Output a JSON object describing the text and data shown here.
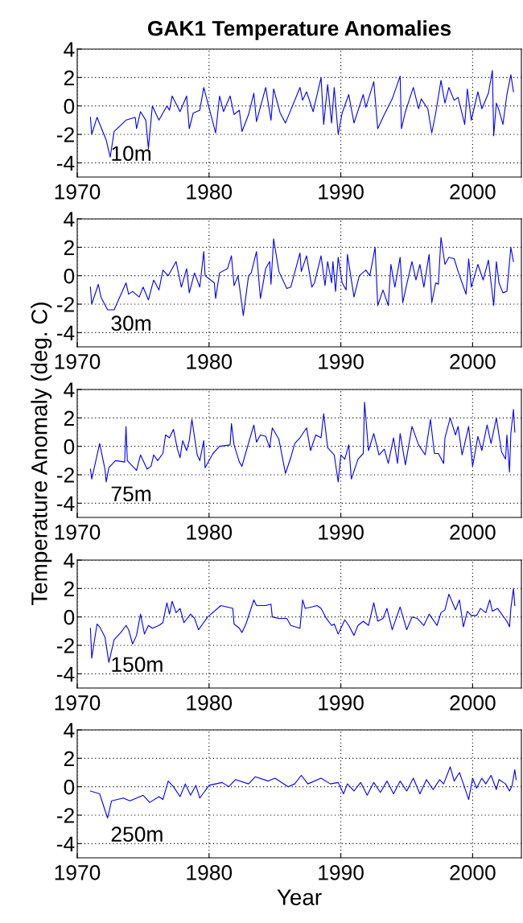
{
  "chart_data": [
    {
      "type": "line",
      "title": "GAK1 Temperature Anomalies",
      "xlim": [
        1970,
        2003.7
      ],
      "ylim": [
        -5,
        4
      ],
      "xticks": [
        1970,
        1980,
        1990,
        2000
      ],
      "yticks": [
        -4,
        -2,
        0,
        2,
        4
      ],
      "grid": true,
      "series": [
        {
          "name": "10m",
          "color": "#0000ff",
          "x": [
            1971.0,
            1971.1,
            1971.5,
            1972.2,
            1972.5,
            1972.8,
            1973.7,
            1974.4,
            1974.5,
            1974.8,
            1975.2,
            1975.4,
            1975.7,
            1976.2,
            1976.8,
            1977.0,
            1977.2,
            1977.8,
            1978.3,
            1978.5,
            1978.8,
            1979.3,
            1979.6,
            1980.5,
            1980.8,
            1981.1,
            1981.6,
            1981.9,
            1982.3,
            1982.5,
            1983.0,
            1983.4,
            1983.6,
            1984.3,
            1984.7,
            1984.9,
            1985.4,
            1985.8,
            1986.9,
            1987.1,
            1987.4,
            1987.9,
            1988.5,
            1988.7,
            1989.0,
            1989.3,
            1989.5,
            1989.8,
            1990.1,
            1990.6,
            1991.0,
            1991.7,
            1991.9,
            1992.5,
            1992.8,
            1993.3,
            1993.9,
            1994.5,
            1994.6,
            1994.9,
            1995.5,
            1995.9,
            1996.1,
            1996.6,
            1996.9,
            1997.2,
            1997.6,
            1997.9,
            1998.2,
            1998.6,
            1998.9,
            1999.4,
            1999.6,
            1999.9,
            2000.4,
            2000.7,
            2001.2,
            2001.5,
            2001.6,
            2001.8,
            2002.0,
            2002.3,
            2002.6,
            2002.9,
            2003.1
          ],
          "values": [
            -0.8,
            -2.0,
            -0.8,
            -2.4,
            -3.6,
            -1.8,
            -1.0,
            -0.8,
            -1.6,
            -0.4,
            -1.0,
            -3.0,
            0.0,
            -1.0,
            0.0,
            -0.3,
            0.7,
            -0.4,
            0.7,
            -1.6,
            -0.5,
            -0.3,
            1.3,
            -1.9,
            0.7,
            -0.4,
            0.7,
            -0.6,
            -0.3,
            -1.8,
            -0.6,
            0.9,
            -1.1,
            1.3,
            -1.0,
            1.2,
            -0.5,
            -1.2,
            1.3,
            0.4,
            1.0,
            -0.4,
            2.0,
            -1.3,
            1.5,
            -1.2,
            1.3,
            -2.0,
            -0.5,
            0.8,
            -1.2,
            0.8,
            -0.1,
            1.7,
            -1.6,
            -0.6,
            0.5,
            2.1,
            -1.6,
            -0.4,
            1.3,
            -0.2,
            0.5,
            -0.2,
            -1.9,
            -0.5,
            1.8,
            0.2,
            1.3,
            0.4,
            0.6,
            -1.3,
            1.2,
            -1.0,
            1.0,
            -0.2,
            0.9,
            2.5,
            -2.1,
            0.2,
            -0.3,
            -1.3,
            0.8,
            2.2,
            1.0
          ]
        }
      ]
    },
    {
      "type": "line",
      "xlim": [
        1970,
        2003.7
      ],
      "ylim": [
        -5,
        4
      ],
      "xticks": [
        1970,
        1980,
        1990,
        2000
      ],
      "yticks": [
        -4,
        -2,
        0,
        2,
        4
      ],
      "grid": true,
      "series": [
        {
          "name": "30m",
          "color": "#0000ff",
          "x": [
            1971.0,
            1971.1,
            1971.6,
            1971.8,
            1972.3,
            1972.8,
            1973.7,
            1973.9,
            1974.2,
            1974.7,
            1975.0,
            1975.4,
            1975.8,
            1976.2,
            1976.5,
            1976.9,
            1977.5,
            1977.9,
            1978.3,
            1978.5,
            1978.9,
            1979.3,
            1979.6,
            1979.7,
            1980.4,
            1980.5,
            1980.8,
            1981.4,
            1981.7,
            1981.9,
            1982.2,
            1982.6,
            1983.0,
            1983.2,
            1983.6,
            1983.9,
            1984.3,
            1984.6,
            1984.7,
            1984.9,
            1985.3,
            1985.9,
            1986.2,
            1986.9,
            1987.0,
            1987.4,
            1987.8,
            1988.0,
            1988.5,
            1988.8,
            1989.0,
            1989.3,
            1989.4,
            1989.6,
            1989.8,
            1990.1,
            1990.4,
            1990.5,
            1991.0,
            1991.4,
            1991.9,
            1992.2,
            1992.6,
            1992.8,
            1993.2,
            1993.6,
            1993.8,
            1994.1,
            1994.5,
            1994.7,
            1995.0,
            1995.4,
            1995.7,
            1996.0,
            1996.3,
            1996.7,
            1996.9,
            1997.2,
            1997.4,
            1997.6,
            1997.9,
            1998.2,
            1998.6,
            1998.9,
            1999.2,
            1999.5,
            1999.7,
            1999.9,
            2000.4,
            2000.8,
            2001.2,
            2001.4,
            2001.6,
            2001.8,
            2002.0,
            2002.3,
            2002.6,
            2002.9,
            2003.1
          ],
          "values": [
            -0.8,
            -2.0,
            -0.6,
            -1.5,
            -2.4,
            -2.4,
            -0.5,
            -1.3,
            -1.1,
            -1.5,
            -0.8,
            -1.7,
            -0.3,
            -1.0,
            0.4,
            0.0,
            1.0,
            -0.8,
            0.5,
            -1.2,
            0.2,
            -0.8,
            1.7,
            0.0,
            -0.5,
            -1.6,
            0.2,
            0.5,
            1.4,
            -0.7,
            0.0,
            -2.8,
            0.0,
            0.2,
            1.7,
            -1.6,
            0.5,
            1.0,
            -0.6,
            2.6,
            0.3,
            -0.9,
            -0.8,
            1.6,
            0.3,
            1.4,
            -0.8,
            -0.5,
            1.4,
            -0.7,
            1.0,
            -0.5,
            1.0,
            -1.1,
            1.3,
            -0.5,
            -1.0,
            1.5,
            -1.5,
            0.0,
            0.4,
            0.0,
            2.0,
            -2.1,
            -1.0,
            -2.1,
            0.8,
            -0.8,
            1.3,
            -1.9,
            -0.6,
            1.0,
            -0.3,
            0.8,
            -0.8,
            1.5,
            -1.9,
            -0.5,
            -0.6,
            2.7,
            0.8,
            1.3,
            1.2,
            0.3,
            -0.5,
            -1.3,
            1.2,
            -0.8,
            0.8,
            -0.3,
            1.1,
            -0.5,
            -2.1,
            1.0,
            -0.5,
            -1.2,
            -1.1,
            2.0,
            1.0
          ]
        }
      ]
    },
    {
      "type": "line",
      "ylabel": "Temperature Anomaly (deg. C)",
      "xlim": [
        1970,
        2003.7
      ],
      "ylim": [
        -5,
        4
      ],
      "xticks": [
        1970,
        1980,
        1990,
        2000
      ],
      "yticks": [
        -4,
        -2,
        0,
        2,
        4
      ],
      "grid": true,
      "series": [
        {
          "name": "75m",
          "color": "#0000ff",
          "x": [
            1971.0,
            1971.1,
            1971.7,
            1972.1,
            1972.2,
            1972.4,
            1972.9,
            1973.6,
            1973.7,
            1973.8,
            1974.1,
            1974.5,
            1974.8,
            1975.3,
            1975.6,
            1975.8,
            1976.1,
            1976.5,
            1976.7,
            1977.0,
            1977.3,
            1977.6,
            1977.8,
            1978.0,
            1978.3,
            1978.5,
            1978.7,
            1979.1,
            1979.3,
            1979.6,
            1979.7,
            1980.3,
            1980.8,
            1981.6,
            1981.7,
            1981.9,
            1982.3,
            1982.5,
            1982.8,
            1983.4,
            1983.6,
            1983.9,
            1984.3,
            1984.6,
            1984.8,
            1985.3,
            1985.8,
            1986.2,
            1986.5,
            1986.9,
            1987.4,
            1987.7,
            1988.1,
            1988.5,
            1988.7,
            1989.0,
            1989.5,
            1989.8,
            1990.0,
            1990.3,
            1990.6,
            1990.8,
            1991.3,
            1991.7,
            1991.8,
            1992.1,
            1992.5,
            1992.9,
            1993.3,
            1993.6,
            1994.0,
            1994.3,
            1994.5,
            1994.9,
            1995.4,
            1995.9,
            1996.4,
            1996.8,
            1997.1,
            1997.4,
            1997.8,
            1997.9,
            1998.3,
            1998.7,
            1998.9,
            1999.2,
            1999.7,
            2000.0,
            2000.4,
            2000.7,
            2001.1,
            2001.4,
            2001.8,
            2002.2,
            2002.5,
            2002.6,
            2002.8,
            2002.9,
            2003.1,
            2003.2
          ],
          "values": [
            -1.6,
            -2.3,
            0.2,
            -1.6,
            -2.5,
            -1.5,
            -1.0,
            -1.1,
            1.4,
            -1.0,
            -1.3,
            -1.7,
            -0.6,
            -1.6,
            -1.4,
            -0.6,
            -1.0,
            -0.5,
            0.8,
            0.6,
            1.2,
            -0.2,
            -0.8,
            0.4,
            -0.3,
            0.4,
            1.9,
            -0.6,
            -1.0,
            0.4,
            -1.5,
            -0.5,
            0.0,
            0.1,
            1.6,
            0.1,
            -1.1,
            -1.4,
            -0.4,
            1.5,
            0.3,
            0.8,
            0.7,
            -0.1,
            1.3,
            0.5,
            -1.9,
            -0.8,
            0.2,
            0.6,
            1.3,
            -0.3,
            0.8,
            0.6,
            2.3,
            -0.1,
            -0.6,
            -2.5,
            -0.6,
            -0.9,
            0.1,
            -2.3,
            -0.9,
            -0.5,
            3.1,
            -0.3,
            0.9,
            -0.6,
            -0.2,
            -1.2,
            0.6,
            -1.2,
            0.9,
            -1.3,
            1.4,
            0.1,
            -0.6,
            1.9,
            -0.5,
            -0.5,
            -1.2,
            0.6,
            2.0,
            0.8,
            1.4,
            -0.6,
            1.4,
            -1.4,
            0.7,
            -0.3,
            1.5,
            0.2,
            2.0,
            -0.4,
            -0.9,
            0.8,
            -1.8,
            0.9,
            2.6,
            1.0
          ]
        }
      ]
    },
    {
      "type": "line",
      "xlim": [
        1970,
        2003.7
      ],
      "ylim": [
        -5,
        4
      ],
      "xticks": [
        1970,
        1980,
        1990,
        2000
      ],
      "yticks": [
        -4,
        -2,
        0,
        2,
        4
      ],
      "grid": true,
      "series": [
        {
          "name": "150m",
          "color": "#0000ff",
          "x": [
            1971.0,
            1971.1,
            1971.5,
            1971.7,
            1972.1,
            1972.4,
            1972.8,
            1973.3,
            1973.7,
            1973.9,
            1974.2,
            1974.5,
            1974.8,
            1975.1,
            1975.4,
            1975.7,
            1976.2,
            1976.5,
            1976.8,
            1977.0,
            1977.2,
            1977.5,
            1977.8,
            1978.1,
            1978.6,
            1978.9,
            1979.2,
            1979.9,
            1980.9,
            1981.8,
            1981.9,
            1982.3,
            1982.5,
            1982.8,
            1983.4,
            1983.6,
            1984.3,
            1984.7,
            1984.8,
            1985.3,
            1985.9,
            1986.2,
            1986.9,
            1987.1,
            1987.3,
            1987.8,
            1988.2,
            1988.5,
            1988.9,
            1989.3,
            1989.5,
            1989.8,
            1990.3,
            1990.6,
            1991.0,
            1991.3,
            1991.7,
            1992.1,
            1992.5,
            1992.8,
            1993.2,
            1993.5,
            1993.9,
            1994.2,
            1994.5,
            1995.0,
            1995.4,
            1995.8,
            1996.3,
            1996.7,
            1997.3,
            1997.6,
            1997.9,
            1998.2,
            1998.7,
            1999.0,
            1999.3,
            1999.6,
            1999.9,
            2000.3,
            2000.6,
            2001.0,
            2001.3,
            2001.5,
            2001.9,
            2002.2,
            2002.6,
            2002.8,
            2002.9,
            2003.1,
            2003.2
          ],
          "values": [
            -0.8,
            -2.9,
            -0.5,
            -0.7,
            -1.4,
            -3.2,
            -1.6,
            -1.1,
            -0.6,
            -0.9,
            -1.9,
            -1.3,
            0.2,
            -1.2,
            -0.6,
            -0.8,
            -0.6,
            -0.4,
            1.0,
            0.2,
            1.1,
            0.3,
            0.6,
            -0.4,
            0.2,
            -0.1,
            -0.9,
            0.0,
            0.8,
            0.6,
            -0.5,
            -0.8,
            -1.1,
            -0.5,
            1.2,
            0.8,
            0.8,
            0.9,
            0.0,
            -0.1,
            -0.1,
            -0.6,
            -0.8,
            1.2,
            0.6,
            0.7,
            0.8,
            0.6,
            -0.1,
            -0.6,
            -0.5,
            -1.2,
            -0.2,
            -0.6,
            -1.3,
            -0.6,
            -0.3,
            -0.6,
            1.0,
            -0.3,
            -0.1,
            0.6,
            -0.9,
            -0.1,
            0.7,
            -0.9,
            0.0,
            -0.1,
            -0.6,
            0.2,
            -0.6,
            0.3,
            0.5,
            1.6,
            0.5,
            1.2,
            -0.7,
            0.4,
            0.1,
            0.1,
            0.6,
            0.3,
            1.2,
            0.4,
            0.6,
            0.2,
            -0.3,
            -0.7,
            0.6,
            2.0,
            0.8
          ]
        }
      ]
    },
    {
      "type": "line",
      "xlabel": "Year",
      "xlim": [
        1970,
        2003.7
      ],
      "ylim": [
        -5,
        4
      ],
      "xticks": [
        1970,
        1980,
        1990,
        2000
      ],
      "yticks": [
        -4,
        -2,
        0,
        2,
        4
      ],
      "grid": true,
      "series": [
        {
          "name": "250m",
          "color": "#0000ff",
          "x": [
            1971.0,
            1971.7,
            1972.3,
            1972.6,
            1973.5,
            1974.0,
            1975.0,
            1975.5,
            1976.2,
            1976.5,
            1976.9,
            1977.3,
            1977.8,
            1978.2,
            1978.6,
            1979.0,
            1979.3,
            1980.0,
            1981.0,
            1981.5,
            1982.0,
            1983.0,
            1983.5,
            1984.5,
            1985.0,
            1986.0,
            1986.5,
            1987.0,
            1987.5,
            1988.5,
            1989.2,
            1989.8,
            1990.2,
            1990.5,
            1991.0,
            1991.5,
            1992.0,
            1992.5,
            1993.0,
            1993.5,
            1994.0,
            1994.5,
            1995.0,
            1995.5,
            1996.0,
            1996.5,
            1997.0,
            1997.5,
            1997.8,
            1998.3,
            1998.6,
            1999.0,
            1999.3,
            1999.7,
            2000.0,
            2000.3,
            2000.7,
            2001.0,
            2001.4,
            2001.8,
            2002.0,
            2002.5,
            2002.8,
            2003.0,
            2003.2,
            2003.3
          ],
          "values": [
            -0.3,
            -0.5,
            -2.2,
            -1.0,
            -0.8,
            -1.0,
            -0.6,
            -1.1,
            -0.7,
            -0.9,
            0.4,
            0.0,
            -0.7,
            0.2,
            -0.6,
            0.1,
            -0.8,
            0.1,
            0.3,
            0.0,
            0.5,
            0.2,
            0.7,
            0.4,
            0.6,
            0.0,
            0.2,
            0.8,
            0.2,
            0.6,
            0.2,
            0.3,
            -0.5,
            0.2,
            -0.3,
            0.3,
            -0.6,
            0.3,
            -0.4,
            0.4,
            -0.5,
            0.4,
            -0.3,
            0.6,
            -0.5,
            0.5,
            -0.2,
            0.5,
            0.2,
            1.4,
            0.4,
            1.0,
            0.2,
            -0.9,
            0.6,
            -0.1,
            0.6,
            0.2,
            0.8,
            -0.2,
            0.5,
            0.2,
            -0.3,
            0.1,
            1.2,
            0.5
          ]
        }
      ]
    }
  ]
}
